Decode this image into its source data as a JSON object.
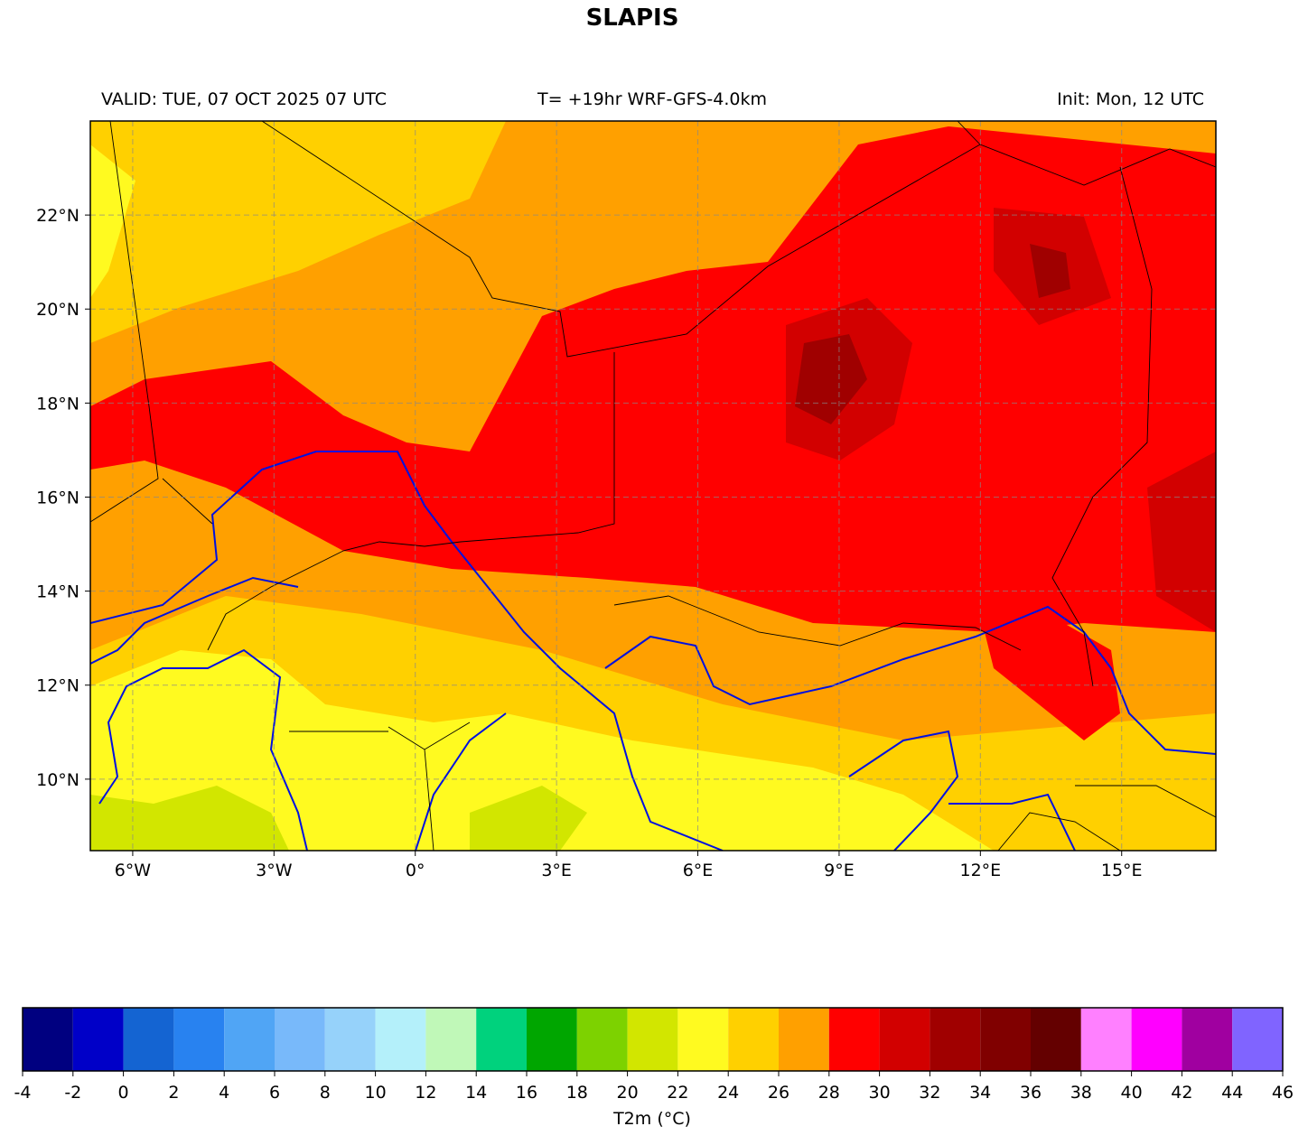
{
  "title": "SLAPIS",
  "header": {
    "valid": "VALID: TUE, 07 OCT 2025 07 UTC",
    "run": "T= +19hr WRF-GFS-4.0km",
    "init": "Init: Mon, 12 UTC"
  },
  "map": {
    "lonlim": [
      -6.9,
      17
    ],
    "latlim": [
      8.48,
      24
    ],
    "lon_ticks": [
      {
        "value": -6,
        "label": "6°W"
      },
      {
        "value": -3,
        "label": "3°W"
      },
      {
        "value": 0,
        "label": "0°"
      },
      {
        "value": 3,
        "label": "3°E"
      },
      {
        "value": 6,
        "label": "6°E"
      },
      {
        "value": 9,
        "label": "9°E"
      },
      {
        "value": 12,
        "label": "12°E"
      },
      {
        "value": 15,
        "label": "15°E"
      }
    ],
    "lat_ticks": [
      {
        "value": 10,
        "label": "10°N"
      },
      {
        "value": 12,
        "label": "12°N"
      },
      {
        "value": 14,
        "label": "14°N"
      },
      {
        "value": 16,
        "label": "16°N"
      },
      {
        "value": 18,
        "label": "18°N"
      },
      {
        "value": 20,
        "label": "20°N"
      },
      {
        "value": 22,
        "label": "22°N"
      }
    ]
  },
  "colorbar": {
    "label": "T2m (°C)",
    "bounds": [
      -4,
      -2,
      0,
      2,
      4,
      6,
      8,
      10,
      12,
      14,
      16,
      18,
      20,
      22,
      24,
      26,
      28,
      30,
      32,
      34,
      36,
      38,
      40,
      42,
      44,
      46
    ],
    "colors": [
      "#000080",
      "#0000c8",
      "#1464d2",
      "#2882f0",
      "#50a5f5",
      "#78b9fa",
      "#96d2fa",
      "#b4f0fa",
      "#c0f8b8",
      "#00d27d",
      "#00a600",
      "#7dd200",
      "#d2e600",
      "#fffa20",
      "#ffd000",
      "#ffa000",
      "#ff0000",
      "#d20000",
      "#a00000",
      "#800000",
      "#640000",
      "#ff80ff",
      "#ff00ff",
      "#a000a0",
      "#8064ff"
    ]
  }
}
